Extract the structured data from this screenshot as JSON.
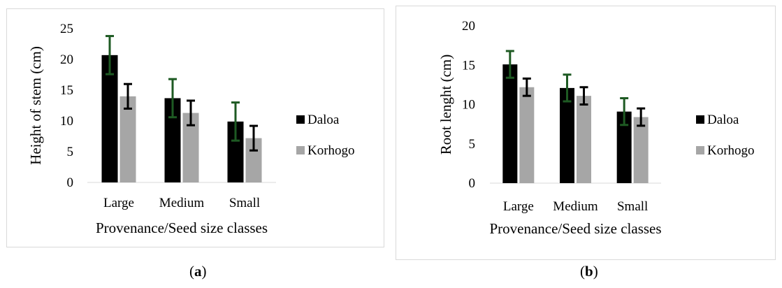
{
  "chart_data": [
    {
      "type": "bar",
      "categories": [
        "Large",
        "Medium",
        "Small"
      ],
      "series": [
        {
          "name": "Daloa",
          "values": [
            20.7,
            13.7,
            9.9
          ],
          "errors": [
            3.1,
            3.1,
            3.1
          ],
          "color": "#000000",
          "error_color": "#1e5a23"
        },
        {
          "name": "Korhogo",
          "values": [
            14.0,
            11.3,
            7.2
          ],
          "errors": [
            2.0,
            2.0,
            2.0
          ],
          "color": "#a6a6a6",
          "error_color": "#000000"
        }
      ],
      "title": "",
      "xlabel": "Provenance/Seed size classes",
      "ylabel": "Height of stem (cm)",
      "ylim": [
        0,
        25
      ],
      "yticks": [
        0,
        5,
        10,
        15,
        20,
        25
      ],
      "legend": "right",
      "grid": false
    },
    {
      "type": "bar",
      "categories": [
        "Large",
        "Medium",
        "Small"
      ],
      "series": [
        {
          "name": "Daloa",
          "values": [
            15.1,
            12.1,
            9.1
          ],
          "errors": [
            1.7,
            1.7,
            1.7
          ],
          "color": "#000000",
          "error_color": "#1e5a23"
        },
        {
          "name": "Korhogo",
          "values": [
            12.2,
            11.1,
            8.4
          ],
          "errors": [
            1.1,
            1.1,
            1.1
          ],
          "color": "#a6a6a6",
          "error_color": "#000000"
        }
      ],
      "title": "",
      "xlabel": "Provenance/Seed size classes",
      "ylabel": "Root lenght (cm)",
      "ylim": [
        0,
        20
      ],
      "yticks": [
        0,
        5,
        10,
        15,
        20
      ],
      "legend": "right",
      "grid": false
    }
  ],
  "captions": {
    "a_open": "(",
    "a_letter": "a",
    "a_close": ")",
    "b_open": "(",
    "b_letter": "b",
    "b_close": ")"
  }
}
